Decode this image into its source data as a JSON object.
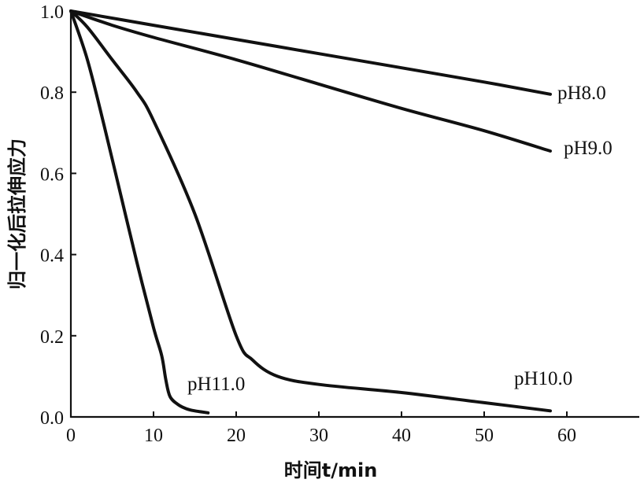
{
  "chart_data": {
    "type": "line",
    "xlabel": "时间t/min",
    "ylabel": "归一化后拉伸应力",
    "xlim": [
      0,
      69
    ],
    "ylim": [
      0,
      1.0
    ],
    "x_ticks": [
      "0",
      "10",
      "20",
      "30",
      "40",
      "50",
      "60"
    ],
    "x_tick_values": [
      0,
      10,
      20,
      30,
      40,
      50,
      60
    ],
    "y_ticks": [
      "0.0",
      "0.2",
      "0.4",
      "0.6",
      "0.8",
      "1.0"
    ],
    "y_tick_values": [
      0.0,
      0.2,
      0.4,
      0.6,
      0.8,
      1.0
    ],
    "grid": false,
    "series": [
      {
        "name": "pH8.0",
        "x": [
          0,
          10,
          20,
          30,
          40,
          50,
          58
        ],
        "y": [
          1.0,
          0.965,
          0.93,
          0.895,
          0.86,
          0.825,
          0.795
        ]
      },
      {
        "name": "pH9.0",
        "x": [
          0,
          5,
          10,
          20,
          30,
          40,
          50,
          58
        ],
        "y": [
          1.0,
          0.965,
          0.935,
          0.88,
          0.82,
          0.76,
          0.705,
          0.655
        ]
      },
      {
        "name": "pH10.0",
        "x": [
          0,
          2,
          5,
          8,
          10,
          15,
          20,
          22,
          25,
          30,
          40,
          50,
          58
        ],
        "y": [
          1.0,
          0.96,
          0.88,
          0.8,
          0.73,
          0.5,
          0.2,
          0.14,
          0.1,
          0.08,
          0.06,
          0.035,
          0.015
        ]
      },
      {
        "name": "pH11.0",
        "x": [
          0,
          2,
          4,
          6,
          8,
          10,
          11,
          11.5,
          12,
          13,
          14,
          15,
          16.6
        ],
        "y": [
          1.0,
          0.88,
          0.72,
          0.55,
          0.38,
          0.22,
          0.15,
          0.09,
          0.05,
          0.03,
          0.02,
          0.015,
          0.01
        ]
      }
    ]
  }
}
